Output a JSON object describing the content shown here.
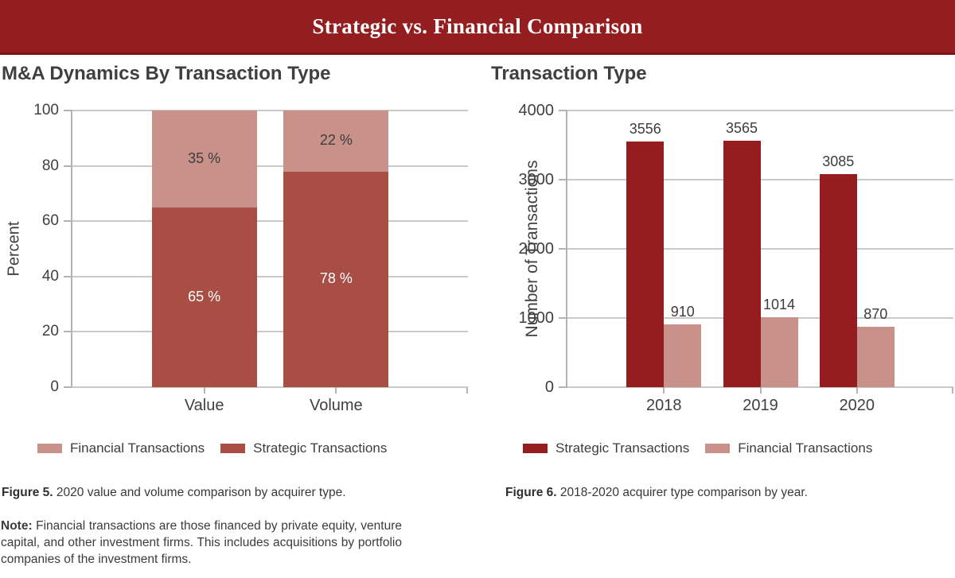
{
  "header": {
    "title": "Strategic vs. Financial Comparison",
    "bg_color": "#941d1f",
    "border_color": "#7b1517",
    "text_color": "#ffffff"
  },
  "left_panel": {
    "title": "M&A Dynamics By Transaction Type",
    "legend": [
      {
        "label": "Financial Transactions",
        "color": "#c8918a"
      },
      {
        "label": "Strategic Transactions",
        "color": "#a94e45"
      }
    ],
    "figure_label": "Figure 5.",
    "figure_caption": "2020 value and volume comparison by acquirer type.",
    "note_label": "Note:",
    "note_text": "Financial transactions are those financed by private equity, venture capital, and other investment firms. This includes acquisitions by portfolio companies of the investment firms."
  },
  "right_panel": {
    "title": "Transaction Type",
    "legend": [
      {
        "label": "Strategic Transactions",
        "color": "#951d20"
      },
      {
        "label": "Financial Transactions",
        "color": "#c8918a"
      }
    ],
    "figure_label": "Figure 6.",
    "figure_caption": "2018-2020 acquirer type comparison by year."
  },
  "colors": {
    "gridline": "#c9c9c9",
    "axis": "#b3b3b3",
    "tick_text": "#404040",
    "value_label": "#3d3d3d"
  },
  "chart_data": [
    {
      "type": "bar",
      "stacked": true,
      "title": "M&A Dynamics By Transaction Type",
      "categories": [
        "Value",
        "Volume"
      ],
      "series": [
        {
          "name": "Strategic Transactions",
          "values": [
            65,
            78
          ],
          "color": "#a94e45",
          "label_color": "#ffffff"
        },
        {
          "name": "Financial Transactions",
          "values": [
            35,
            22
          ],
          "color": "#c8918a",
          "label_color": "#3d3d3d"
        }
      ],
      "xlabel": "",
      "ylabel": "Percent",
      "ylim": [
        0,
        100
      ],
      "yticks": [
        0,
        20,
        40,
        60,
        80,
        100
      ],
      "label_suffix": " %",
      "grid": true,
      "legend_position": "bottom"
    },
    {
      "type": "bar",
      "stacked": false,
      "title": "Transaction Type",
      "categories": [
        "2018",
        "2019",
        "2020"
      ],
      "series": [
        {
          "name": "Strategic Transactions",
          "values": [
            3556,
            3565,
            3085
          ],
          "color": "#951d20"
        },
        {
          "name": "Financial Transactions",
          "values": [
            910,
            1014,
            870
          ],
          "color": "#c8918a"
        }
      ],
      "xlabel": "",
      "ylabel": "Number of Transactions",
      "ylim": [
        0,
        4000
      ],
      "yticks": [
        0,
        1000,
        2000,
        3000,
        4000
      ],
      "grid": true,
      "legend_position": "bottom"
    }
  ]
}
